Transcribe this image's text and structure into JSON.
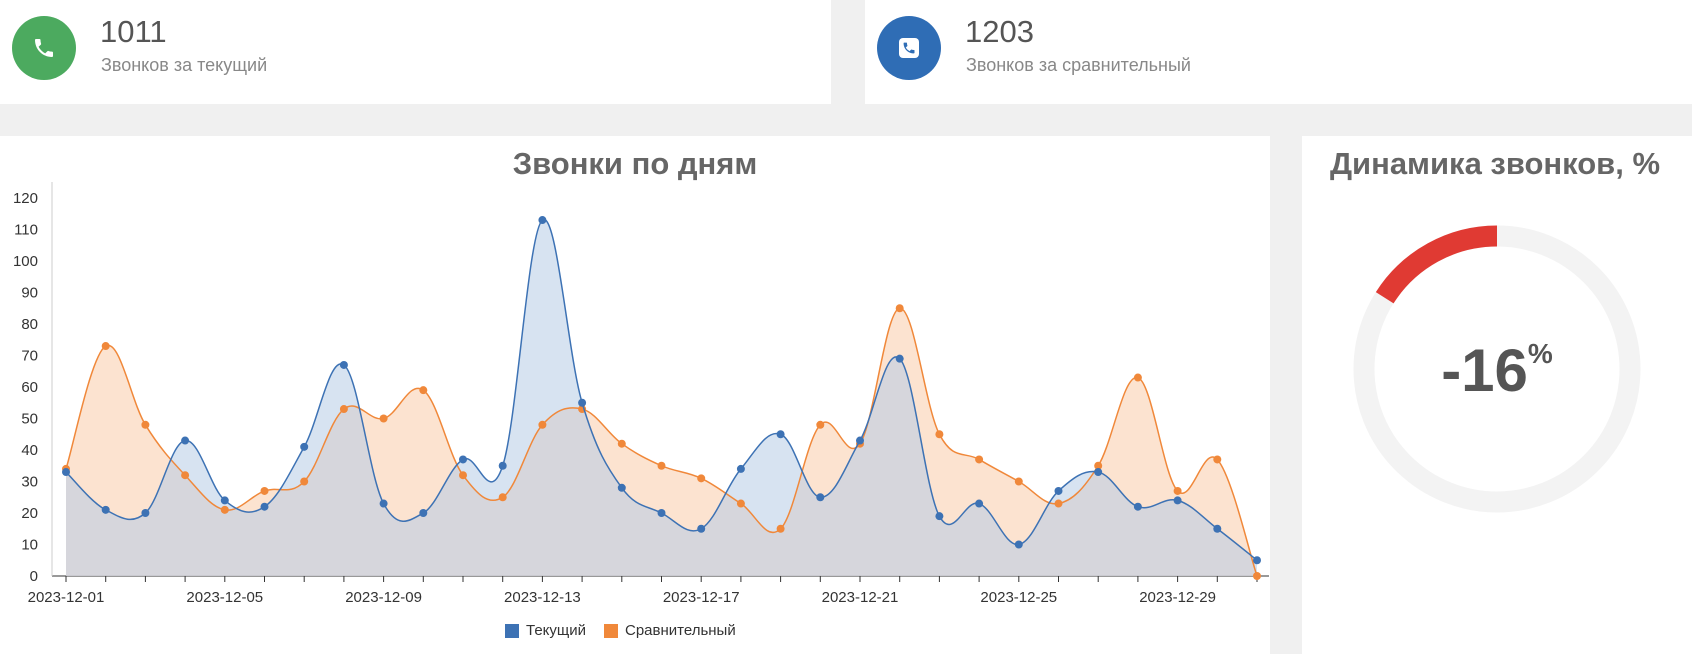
{
  "stats": [
    {
      "value": "1011",
      "label": "Звонков за текущий",
      "icon": "phone-icon",
      "color": "#4caa5f"
    },
    {
      "value": "1203",
      "label": "Звонков за сравнительный",
      "icon": "phone-square-icon",
      "color": "#2f6db5"
    }
  ],
  "chart_data": {
    "type": "area",
    "title": "Звонки по дням",
    "x": [
      "2023-12-01",
      "2023-12-02",
      "2023-12-03",
      "2023-12-04",
      "2023-12-05",
      "2023-12-06",
      "2023-12-07",
      "2023-12-08",
      "2023-12-09",
      "2023-12-10",
      "2023-12-11",
      "2023-12-12",
      "2023-12-13",
      "2023-12-14",
      "2023-12-15",
      "2023-12-16",
      "2023-12-17",
      "2023-12-18",
      "2023-12-19",
      "2023-12-20",
      "2023-12-21",
      "2023-12-22",
      "2023-12-23",
      "2023-12-24",
      "2023-12-25",
      "2023-12-26",
      "2023-12-27",
      "2023-12-28",
      "2023-12-29",
      "2023-12-30",
      "2023-12-31"
    ],
    "x_tick_labels": [
      "2023-12-01",
      "2023-12-05",
      "2023-12-09",
      "2023-12-13",
      "2023-12-17",
      "2023-12-21",
      "2023-12-25",
      "2023-12-29"
    ],
    "series": [
      {
        "name": "Текущий",
        "color": "#3d72b4",
        "fill": "#b7cce6",
        "values": [
          33,
          21,
          20,
          43,
          24,
          22,
          41,
          67,
          23,
          20,
          37,
          35,
          113,
          55,
          28,
          20,
          15,
          34,
          45,
          25,
          43,
          69,
          19,
          23,
          10,
          27,
          33,
          22,
          24,
          15,
          5
        ]
      },
      {
        "name": "Сравнительный",
        "color": "#f0883a",
        "fill": "#fbd9c0",
        "values": [
          34,
          73,
          48,
          32,
          21,
          27,
          30,
          53,
          50,
          59,
          32,
          25,
          48,
          53,
          42,
          35,
          31,
          23,
          15,
          48,
          42,
          85,
          45,
          37,
          30,
          23,
          35,
          63,
          27,
          37,
          0
        ]
      }
    ],
    "ylim": [
      0,
      120
    ],
    "y_ticks": [
      0,
      10,
      20,
      30,
      40,
      50,
      60,
      70,
      80,
      90,
      100,
      110,
      120
    ],
    "legend": "bottom",
    "grid": false
  },
  "gauge": {
    "title": "Динамика звонков, %",
    "value": "-16",
    "unit": "%",
    "fraction": 0.16,
    "color": "#e03a33",
    "track_color": "#f3f3f3"
  }
}
